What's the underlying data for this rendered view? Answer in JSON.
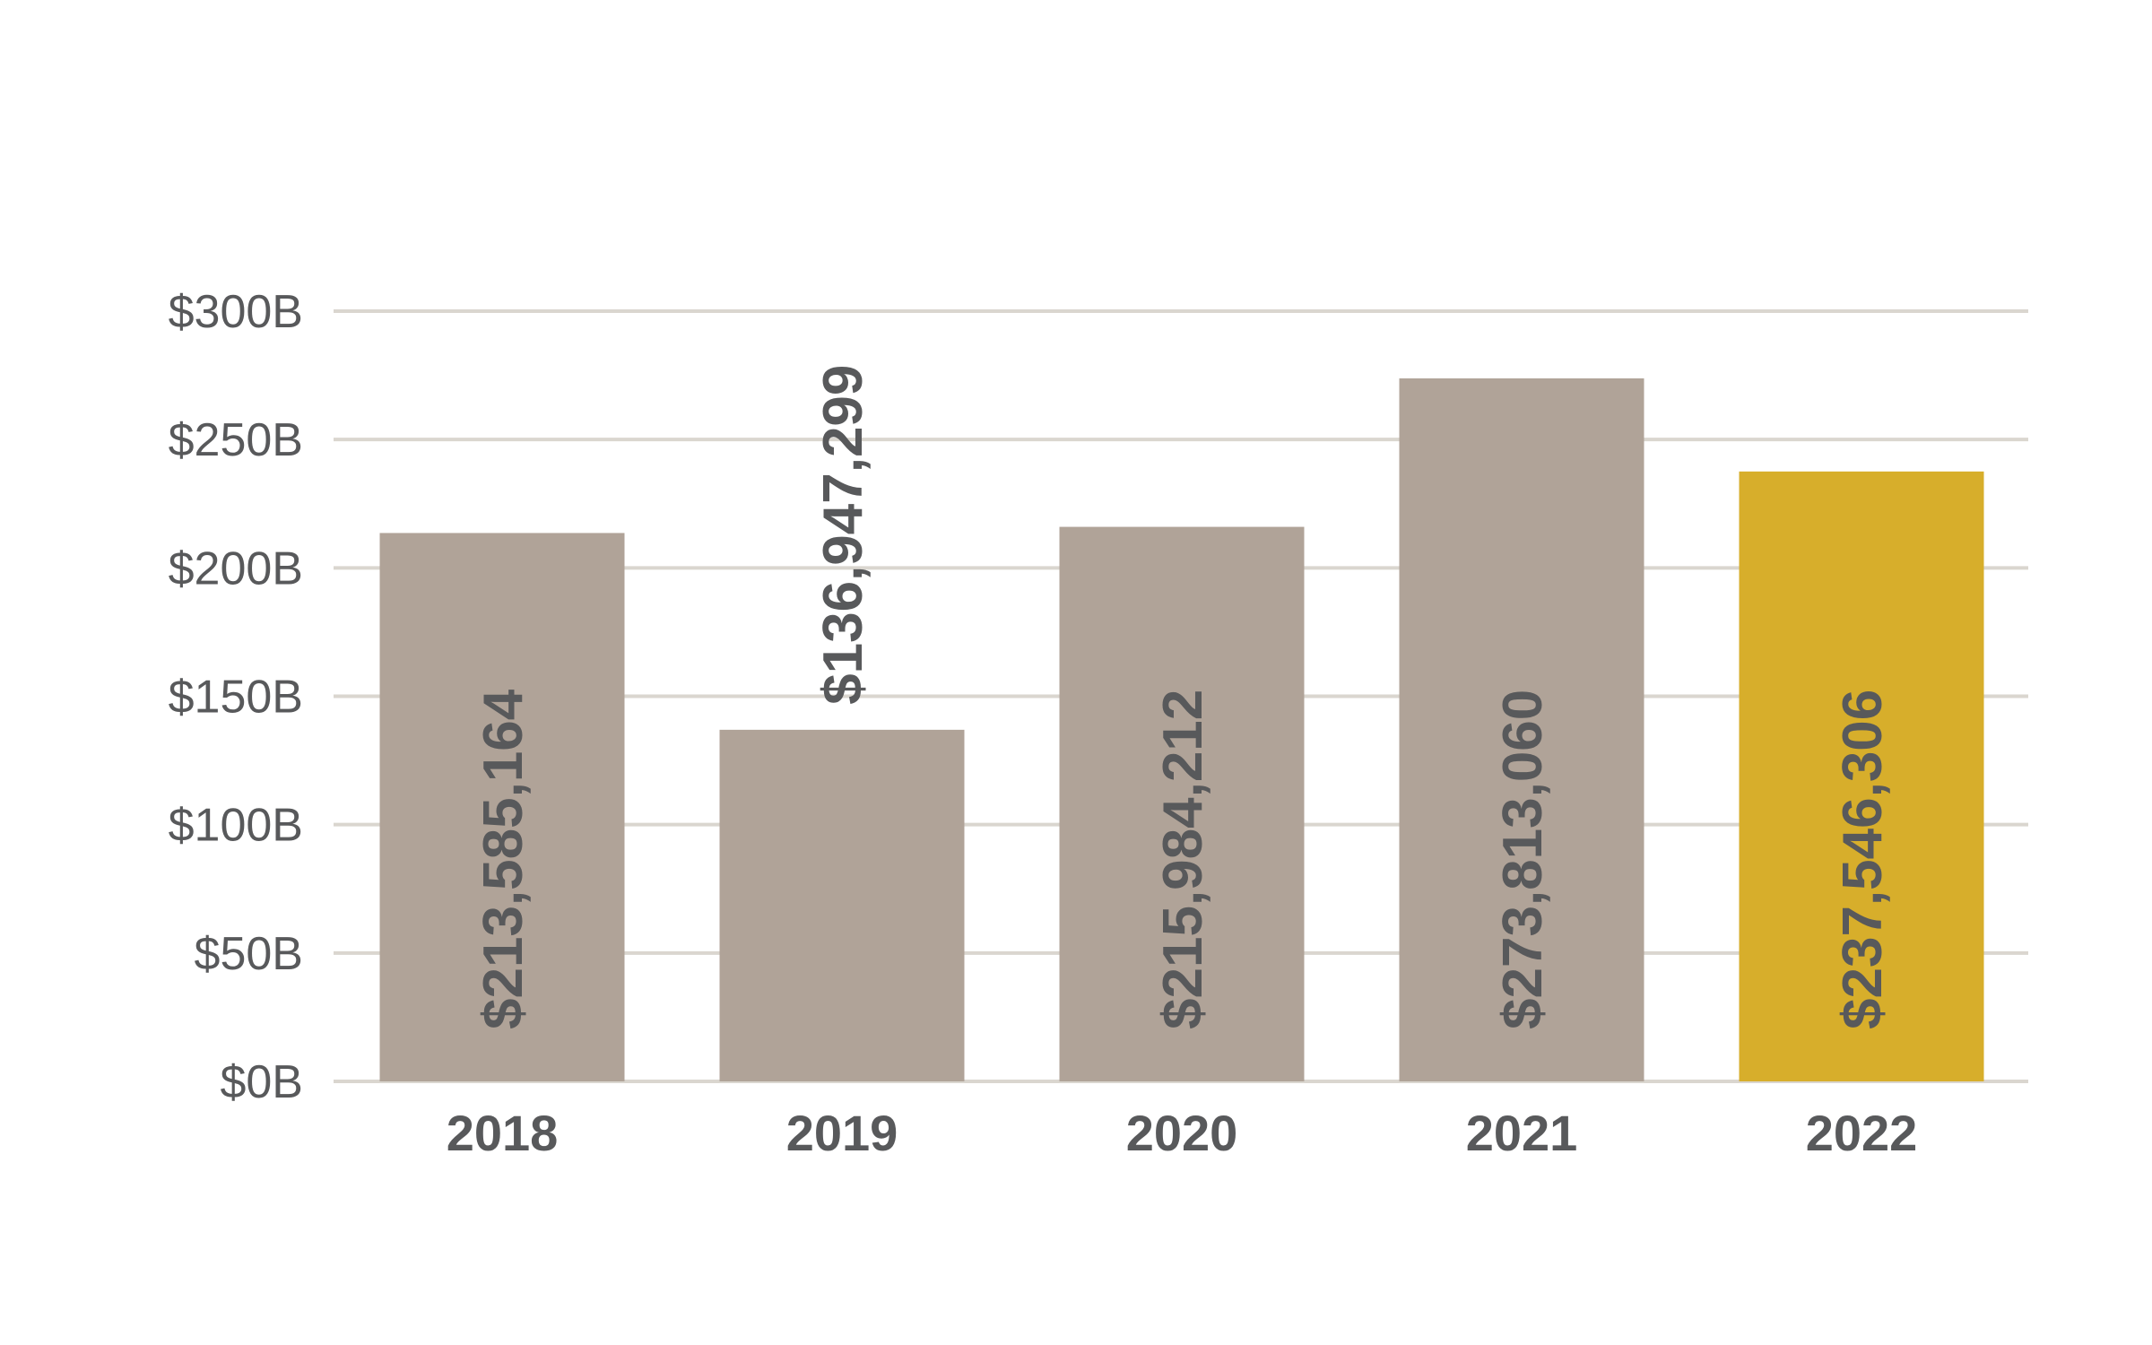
{
  "chart_data": {
    "type": "bar",
    "title": "",
    "xlabel": "",
    "ylabel": "",
    "categories": [
      "2018",
      "2019",
      "2020",
      "2021",
      "2022"
    ],
    "values": [
      213585164,
      136947299,
      215984212,
      273813060,
      237546306
    ],
    "value_labels": [
      "$213,585,164",
      "$136,947,299",
      "$215,984,212",
      "$273,813,060",
      "$237,546,306"
    ],
    "ylim": [
      0,
      300
    ],
    "y_ticks": [
      0,
      50,
      100,
      150,
      200,
      250,
      300
    ],
    "y_tick_labels": [
      "$0B",
      "$50B",
      "$100B",
      "$150B",
      "$200B",
      "$250B",
      "$300B"
    ],
    "grid": true,
    "colors": {
      "bar_default": "#b0a398",
      "bar_highlight": "#d7ae2b",
      "highlight_category": "2022",
      "gridline": "#dad6cf",
      "text": "#58595b"
    }
  }
}
